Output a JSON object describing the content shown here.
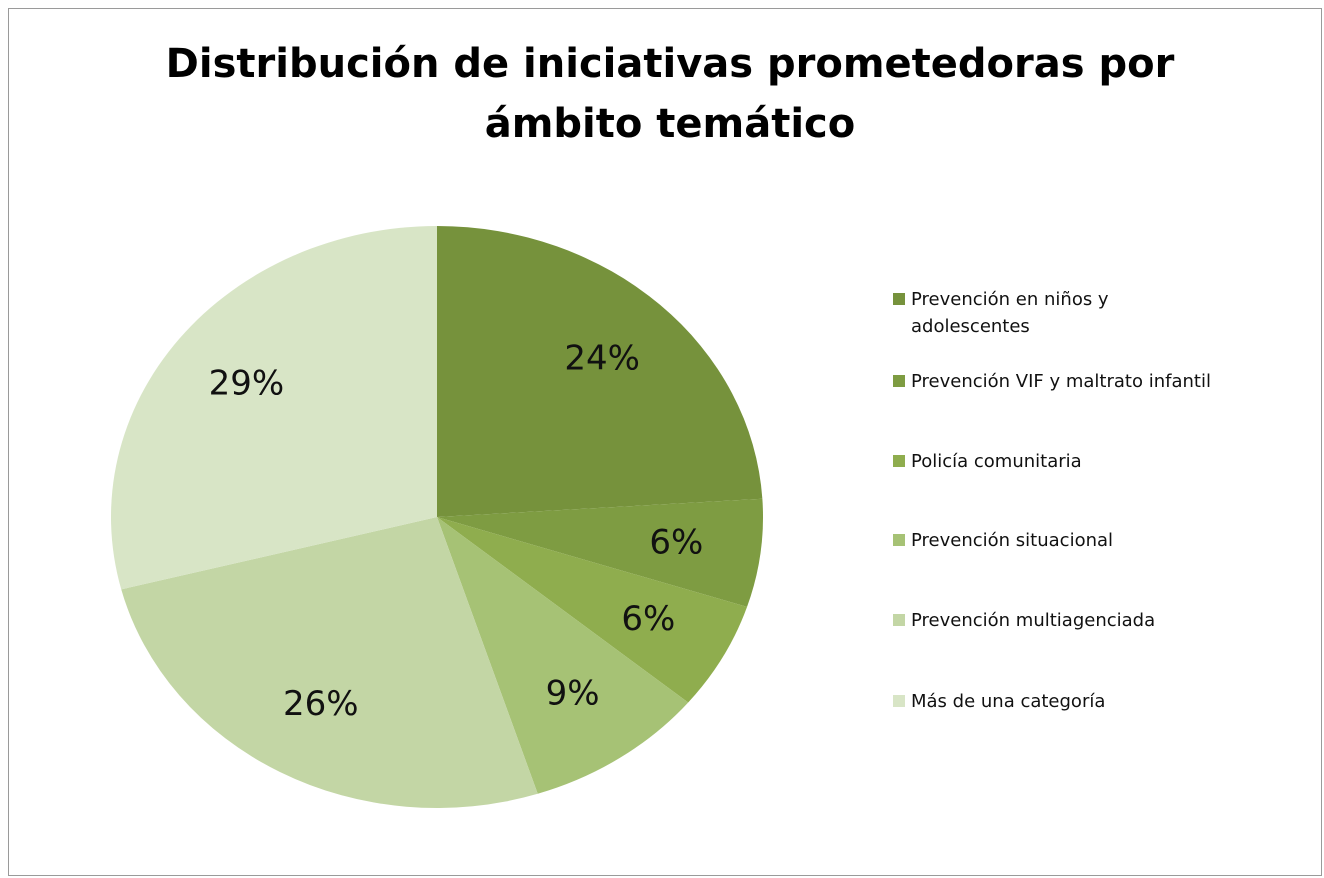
{
  "chart_data": {
    "type": "pie",
    "title": "Distribución de iniciativas prometedoras por ámbito temático",
    "categories": [
      "Prevención en niños y adolescentes",
      "Prevención VIF y maltrato infantil",
      "Policía comunitaria",
      "Prevención situacional",
      "Prevención multiagenciada",
      "Más de una categoría"
    ],
    "values": [
      24,
      6,
      6,
      9,
      26,
      29
    ],
    "value_labels": [
      "24%",
      "6%",
      "6%",
      "9%",
      "26%",
      "29%"
    ],
    "colors": [
      "#76923c",
      "#7e9c42",
      "#8fad4e",
      "#a6c275",
      "#c3d6a5",
      "#d8e5c6"
    ],
    "legend": "right"
  }
}
